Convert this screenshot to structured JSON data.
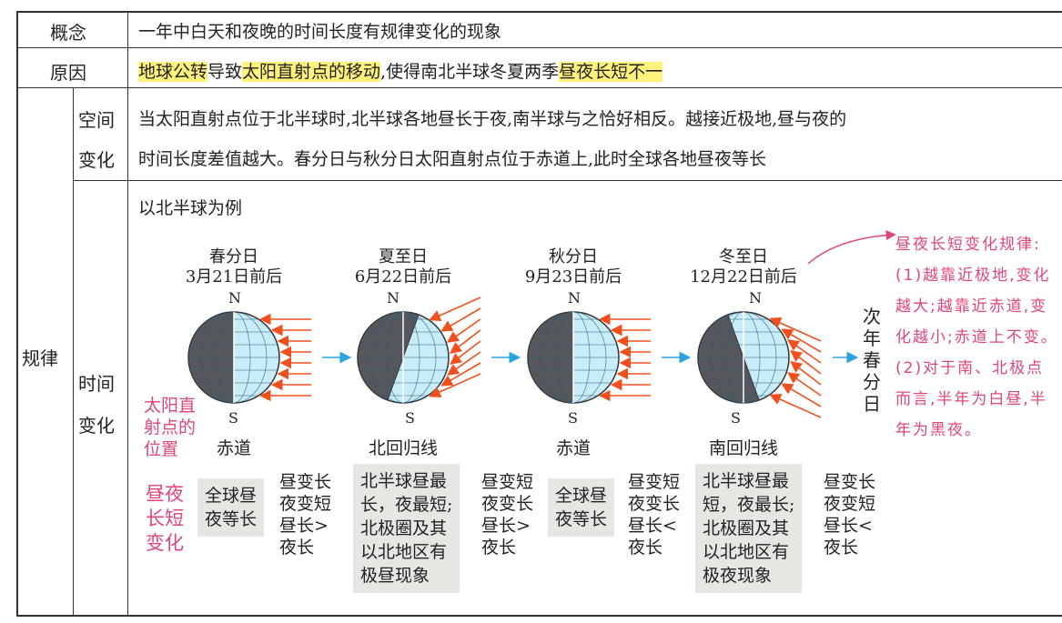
{
  "rows": {
    "concept": {
      "label": "概念",
      "text": "一年中白天和夜晚的时间长度有规律变化的现象"
    },
    "cause": {
      "label": "原因",
      "parts": [
        "地球公转",
        "导致",
        "太阳直射点的移动",
        ",使得南北半球冬夏两季",
        "昼夜长短不一"
      ]
    },
    "law": {
      "label": "规律",
      "space": {
        "label1": "空间",
        "label2": "变化",
        "line1": "当太阳直射点位于北半球时,北半球各地昼长于夜,南半球与之恰好相反。越接近极地,昼与夜的",
        "line2": "时间长度差值越大。春分日与秋分日太阳直射点位于赤道上,此时全球各地昼夜等长"
      },
      "time": {
        "label1": "时间",
        "label2": "变化",
        "example": "以北半球为例",
        "sun_position_label": [
          "太阳直",
          "射点的",
          "位置"
        ],
        "daylength_label": [
          "昼夜",
          "长短",
          "变化"
        ],
        "next": [
          "次",
          "年",
          "春",
          "分",
          "日"
        ],
        "globes": [
          {
            "name": "春分日",
            "date": "3月21日前后",
            "n": "N",
            "s": "S",
            "position": "赤道",
            "tilt": 0
          },
          {
            "name": "夏至日",
            "date": "6月22日前后",
            "n": "N",
            "s": "S",
            "position": "北回归线",
            "tilt": 20
          },
          {
            "name": "秋分日",
            "date": "9月23日前后",
            "n": "N",
            "s": "S",
            "position": "赤道",
            "tilt": 0
          },
          {
            "name": "冬至日",
            "date": "12月22日前后",
            "n": "N",
            "s": "S",
            "position": "南回归线",
            "tilt": -20
          }
        ],
        "boxes": [
          {
            "lines": [
              "全球昼",
              "夜等长"
            ]
          },
          {
            "lines": [
              "北半球昼最",
              "长，夜最短;",
              "北极圈及其",
              "以北地区有",
              "极昼现象"
            ]
          },
          {
            "lines": [
              "全球昼",
              "夜等长"
            ]
          },
          {
            "lines": [
              "北半球昼最",
              "短，夜最长;",
              "北极圈及其",
              "以北地区有",
              "极夜现象"
            ]
          }
        ],
        "changes": [
          {
            "lines": [
              "昼变长",
              "夜变短",
              "昼长>",
              "夜长"
            ]
          },
          {
            "lines": [
              "昼变短",
              "夜变长",
              "昼长>",
              "夜长"
            ]
          },
          {
            "lines": [
              "昼变短",
              "夜变长",
              "昼长<",
              "夜长"
            ]
          },
          {
            "lines": [
              "昼变长",
              "夜变短",
              "昼长<",
              "夜长"
            ]
          }
        ],
        "note": "昼夜长短变化规律:(1)越靠近极地,变化越大;越靠近赤道,变化越小;赤道上不变。(2)对于南、北极点而言,半年为白昼,半年为黑夜。"
      }
    }
  },
  "colors": {
    "highlight": "#fff27a",
    "annotation": "#e0457b",
    "sunray": "#f0501e",
    "arrow": "#2aa3e0",
    "globe_dark": "#55575c",
    "globe_light": "#c9ecf9"
  }
}
